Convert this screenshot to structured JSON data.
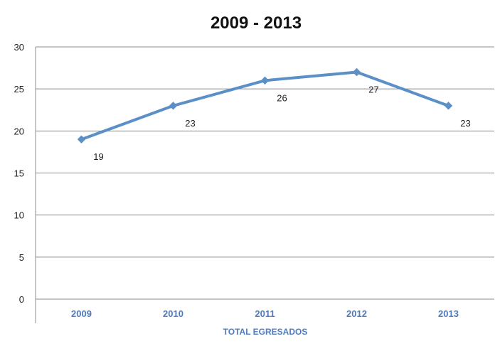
{
  "chart_data": {
    "type": "line",
    "title": "2009 - 2013",
    "xlabel": "",
    "ylabel": "",
    "categories": [
      "2009",
      "2010",
      "2011",
      "2012",
      "2013"
    ],
    "category_group_label": "TOTAL EGRESADOS",
    "series": [
      {
        "values": [
          19,
          23,
          26,
          27,
          23
        ],
        "color": "#5b8fc7",
        "marker": "diamond",
        "data_labels": [
          "19",
          "23",
          "26",
          "27",
          "23"
        ]
      }
    ],
    "ylim": [
      0,
      30
    ],
    "yticks": [
      0,
      5,
      10,
      15,
      20,
      25,
      30
    ],
    "grid": true,
    "legend": "none",
    "colors": {
      "gridline": "#8c8c8c",
      "axis_label": "#1f1f1f",
      "category_label": "#4f7bbf"
    }
  }
}
